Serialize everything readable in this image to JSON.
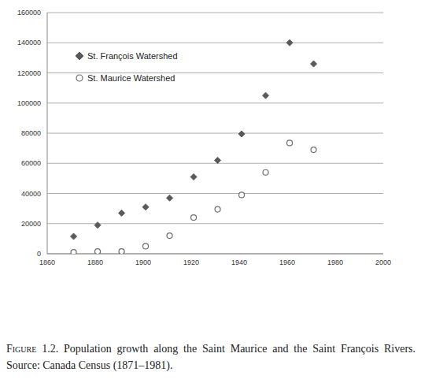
{
  "chart_data": {
    "type": "scatter",
    "caption_label": "Figure 1.2.",
    "caption": "Population growth along the Saint Maurice and the Saint François Rivers. Source: Canada Census (1871–1981).",
    "x": [
      1871,
      1881,
      1891,
      1901,
      1911,
      1921,
      1931,
      1941,
      1951,
      1961,
      1971
    ],
    "series": [
      {
        "name": "St. François Watershed",
        "color": "#5a5a5a",
        "marker": "diamond",
        "values": [
          11500,
          19000,
          27000,
          31000,
          37000,
          51000,
          62000,
          79500,
          105000,
          140000,
          126000
        ]
      },
      {
        "name": "St. Maurice Watershed",
        "color": "#6e6e6e",
        "marker": "open_circle",
        "values": [
          1000,
          1500,
          1500,
          5000,
          12000,
          24000,
          29500,
          39000,
          54000,
          73500,
          69000
        ]
      }
    ],
    "xlim": [
      1860,
      2000
    ],
    "xticks": [
      1860,
      1880,
      1900,
      1920,
      1940,
      1960,
      1980,
      2000
    ],
    "ylim": [
      0,
      160000
    ],
    "yticks": [
      0,
      20000,
      40000,
      60000,
      80000,
      100000,
      120000,
      140000,
      160000
    ],
    "grid": true,
    "legend": "upper left"
  }
}
